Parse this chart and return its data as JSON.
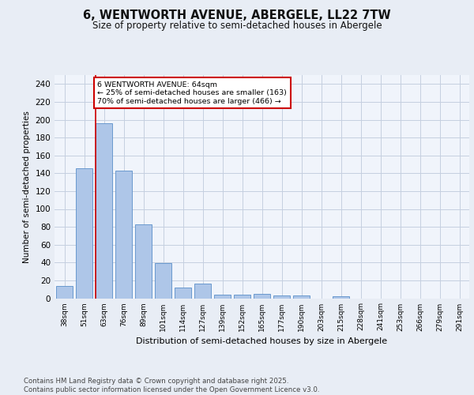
{
  "title": "6, WENTWORTH AVENUE, ABERGELE, LL22 7TW",
  "subtitle": "Size of property relative to semi-detached houses in Abergele",
  "xlabel": "Distribution of semi-detached houses by size in Abergele",
  "ylabel": "Number of semi-detached properties",
  "categories": [
    "38sqm",
    "51sqm",
    "63sqm",
    "76sqm",
    "89sqm",
    "101sqm",
    "114sqm",
    "127sqm",
    "139sqm",
    "152sqm",
    "165sqm",
    "177sqm",
    "190sqm",
    "203sqm",
    "215sqm",
    "228sqm",
    "241sqm",
    "253sqm",
    "266sqm",
    "279sqm",
    "291sqm"
  ],
  "values": [
    14,
    146,
    196,
    143,
    83,
    39,
    12,
    16,
    4,
    4,
    5,
    3,
    3,
    0,
    2,
    0,
    0,
    0,
    0,
    0,
    0
  ],
  "bar_color": "#aec6e8",
  "bar_edge_color": "#5b8fc9",
  "redline_index": 2,
  "annotation_text": "6 WENTWORTH AVENUE: 64sqm\n← 25% of semi-detached houses are smaller (163)\n70% of semi-detached houses are larger (466) →",
  "annotation_box_color": "#ffffff",
  "annotation_box_edge": "#cc0000",
  "ylim": [
    0,
    250
  ],
  "yticks": [
    0,
    20,
    40,
    60,
    80,
    100,
    120,
    140,
    160,
    180,
    200,
    220,
    240
  ],
  "bg_color": "#e8edf5",
  "plot_bg_color": "#f0f4fb",
  "footer": "Contains HM Land Registry data © Crown copyright and database right 2025.\nContains public sector information licensed under the Open Government Licence v3.0.",
  "redline_color": "#cc0000",
  "grid_color": "#c5cfe0"
}
